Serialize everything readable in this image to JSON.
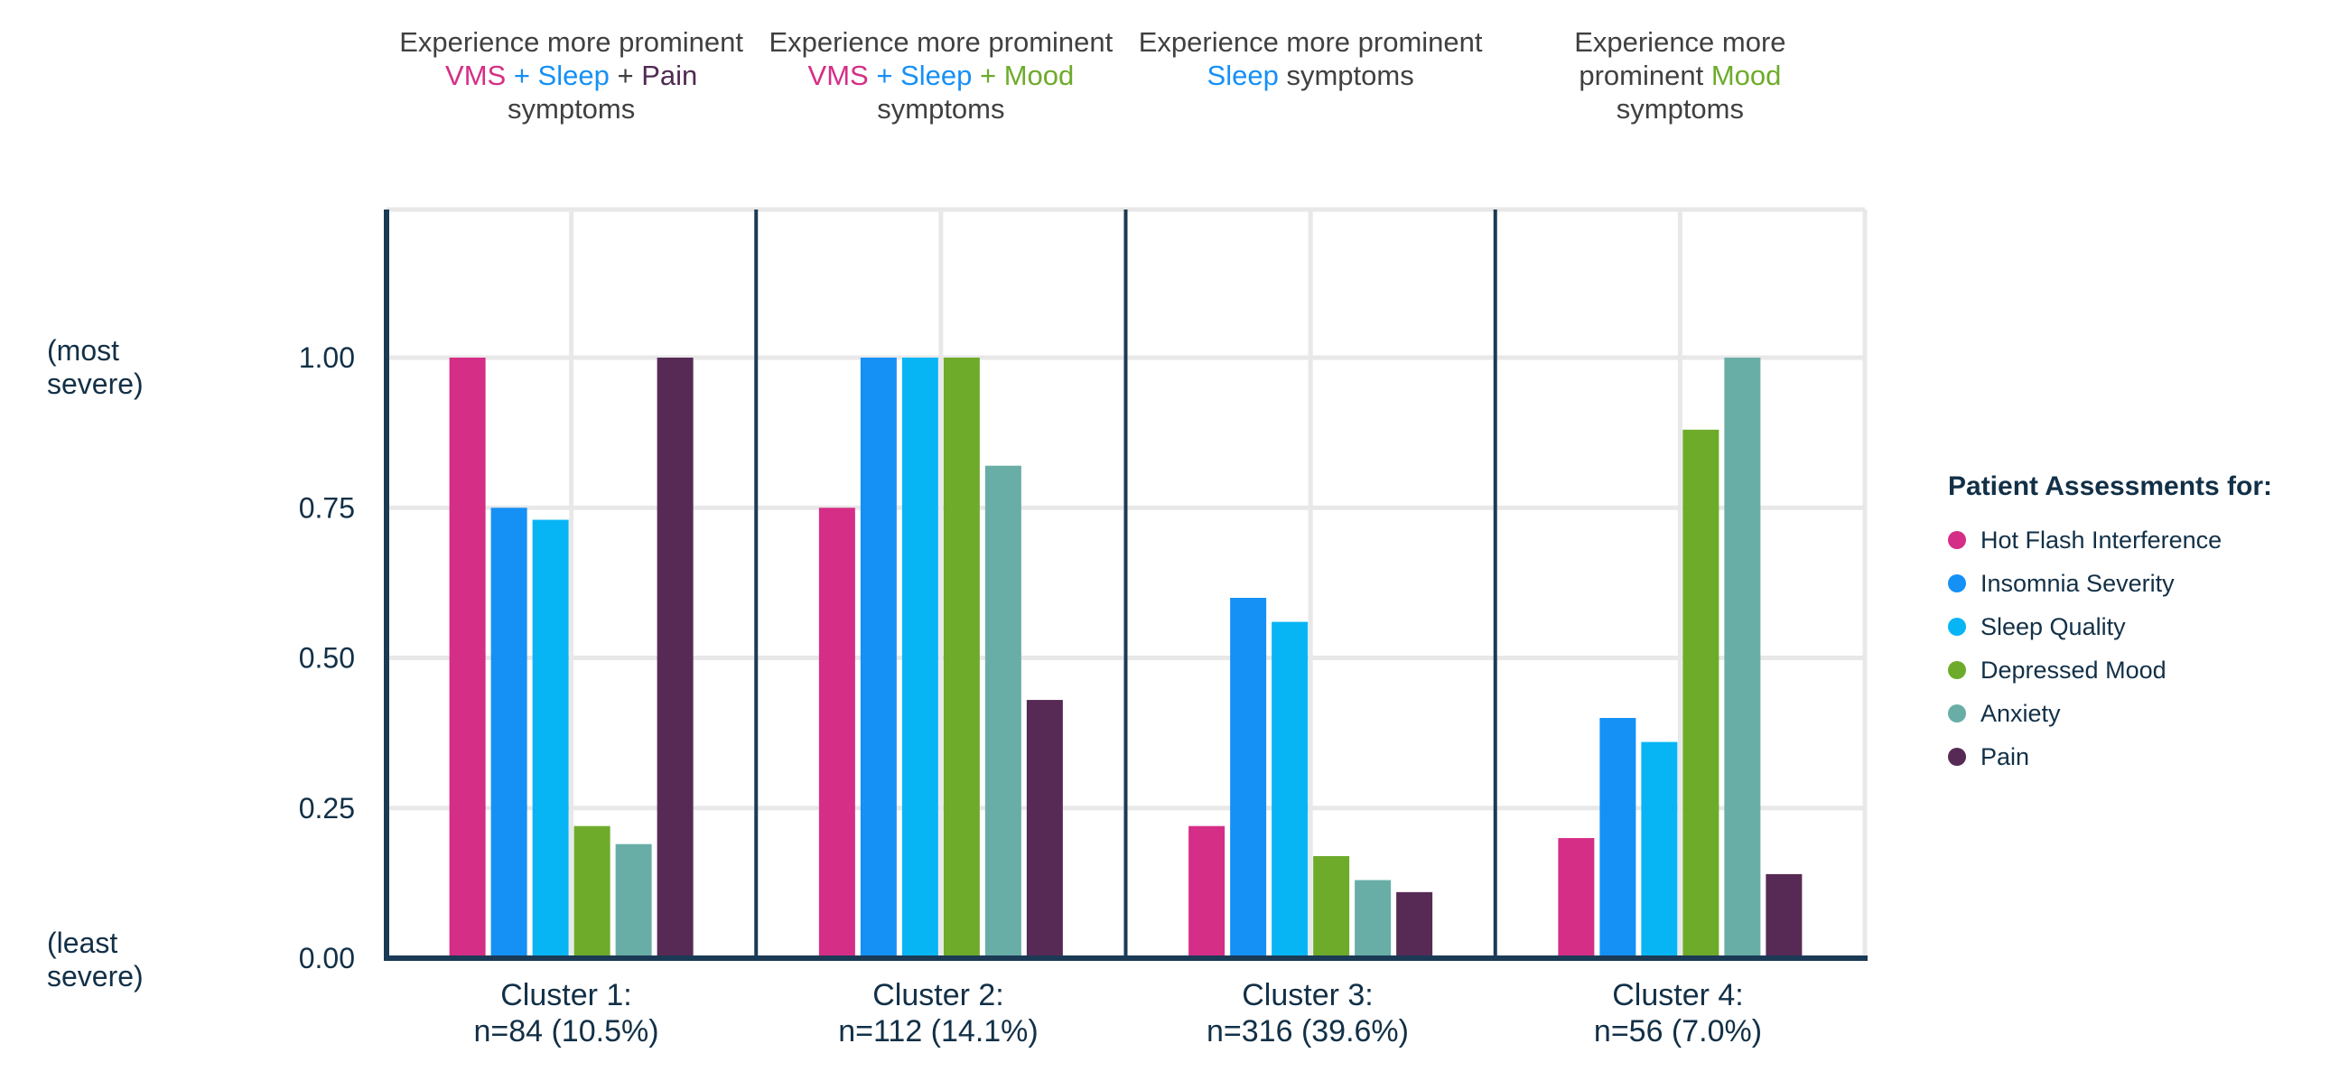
{
  "headers": [
    {
      "parts": [
        {
          "text": "Experience more prominent",
          "color": "#404040",
          "br": true
        },
        {
          "text": "VMS",
          "color": "#d52e86"
        },
        {
          "text": " + ",
          "color": "#1590f5"
        },
        {
          "text": "Sleep",
          "color": "#1590f5"
        },
        {
          "text": " + ",
          "color": "#404040"
        },
        {
          "text": "Pain",
          "color": "#4f2a52",
          "br": true
        },
        {
          "text": "symptoms",
          "color": "#404040"
        }
      ]
    },
    {
      "parts": [
        {
          "text": "Experience more prominent",
          "color": "#404040",
          "br": true
        },
        {
          "text": "VMS",
          "color": "#d52e86"
        },
        {
          "text": " + ",
          "color": "#1590f5"
        },
        {
          "text": "Sleep",
          "color": "#1590f5"
        },
        {
          "text": " + ",
          "color": "#6eab2b"
        },
        {
          "text": "Mood",
          "color": "#6eab2b",
          "br": true
        },
        {
          "text": "symptoms",
          "color": "#404040"
        }
      ]
    },
    {
      "parts": [
        {
          "text": "Experience more prominent",
          "color": "#404040",
          "br": true
        },
        {
          "text": "Sleep",
          "color": "#1590f5"
        },
        {
          "text": " symptoms",
          "color": "#404040"
        }
      ]
    },
    {
      "parts": [
        {
          "text": "Experience more",
          "color": "#404040",
          "br": true
        },
        {
          "text": "prominent ",
          "color": "#404040"
        },
        {
          "text": "Mood",
          "color": "#6eab2b",
          "br": true
        },
        {
          "text": "symptoms",
          "color": "#404040"
        }
      ]
    }
  ],
  "y_axis": {
    "top_label": "(most severe)",
    "bottom_label": "(least severe)"
  },
  "cluster_labels": [
    {
      "line1": "Cluster 1:",
      "line2": "n=84 (10.5%)"
    },
    {
      "line1": "Cluster 2:",
      "line2": "n=112 (14.1%)"
    },
    {
      "line1": "Cluster 3:",
      "line2": "n=316 (39.6%)"
    },
    {
      "line1": "Cluster 4:",
      "line2": "n=56 (7.0%)"
    }
  ],
  "legend": {
    "title": "Patient Assessments for:"
  },
  "chart_data": {
    "type": "bar",
    "categories": [
      "Cluster 1",
      "Cluster 2",
      "Cluster 3",
      "Cluster 4"
    ],
    "ylim": [
      0,
      1.25
    ],
    "yticks": [
      "0.00",
      "0.25",
      "0.50",
      "0.75",
      "1.00"
    ],
    "grid": true,
    "legend_position": "right",
    "series": [
      {
        "name": "Hot Flash Interference",
        "color": "#d52e86",
        "values": [
          1.0,
          0.75,
          0.22,
          0.2
        ]
      },
      {
        "name": "Insomnia Severity",
        "color": "#1590f5",
        "values": [
          0.75,
          1.0,
          0.6,
          0.4
        ]
      },
      {
        "name": "Sleep Quality",
        "color": "#07b5f5",
        "values": [
          0.73,
          1.0,
          0.56,
          0.36
        ]
      },
      {
        "name": "Depressed Mood",
        "color": "#6eab2b",
        "values": [
          0.22,
          1.0,
          0.17,
          0.88
        ]
      },
      {
        "name": "Anxiety",
        "color": "#68aea7",
        "values": [
          0.19,
          0.82,
          0.13,
          1.0
        ]
      },
      {
        "name": "Pain",
        "color": "#572a55",
        "values": [
          1.0,
          0.43,
          0.11,
          0.14
        ]
      }
    ]
  }
}
